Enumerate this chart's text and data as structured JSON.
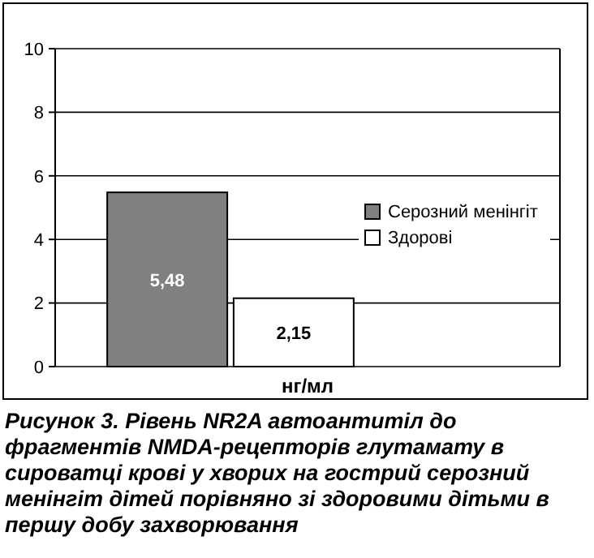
{
  "chart_data": {
    "type": "bar",
    "categories": [
      null
    ],
    "xlabel": "нг/мл",
    "series": [
      {
        "name": "Серозний менінгіт",
        "color": "#808080",
        "values": [
          5.48
        ],
        "value_labels": [
          "5,48"
        ]
      },
      {
        "name": "Здорові",
        "color": "#ffffff",
        "values": [
          2.15
        ],
        "value_labels": [
          "2,15"
        ]
      }
    ],
    "ylim": [
      0,
      10
    ],
    "yticks": [
      0,
      2,
      4,
      6,
      8,
      10
    ],
    "grid": "y",
    "legend": "right",
    "annotations": [
      "Рисунок 3. Рівень NR2A автоантитіл до фрагментів NMDA-рецепторів глутамату в сироватці крові у хворих на гострий серозний менінгіт дітей порівняно зі здоровими дітьми в першу добу захворювання"
    ]
  }
}
